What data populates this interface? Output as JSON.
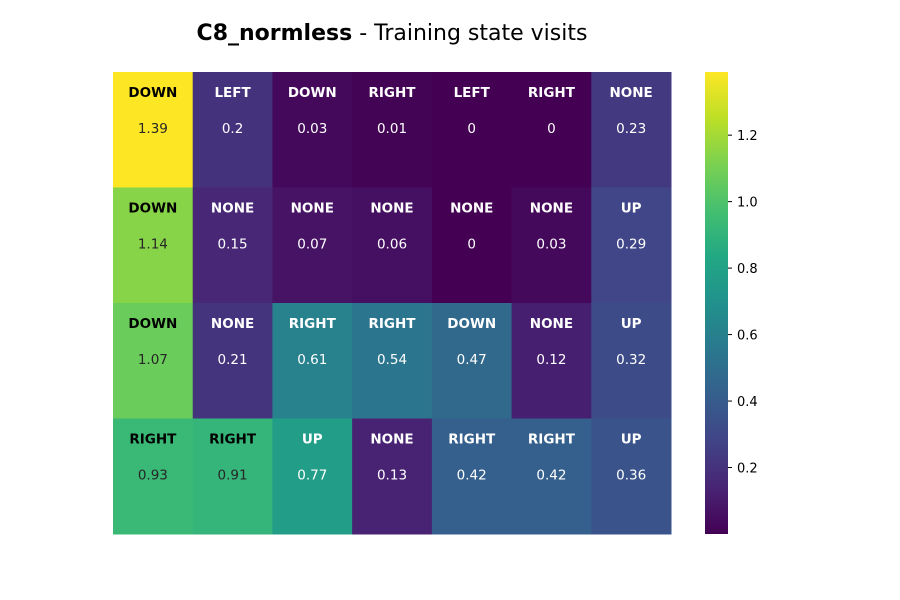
{
  "title": {
    "bold": "C8_normless",
    "rest": " - Training state visits"
  },
  "chart_data": {
    "type": "heatmap",
    "rows": 4,
    "cols": 7,
    "actions": [
      [
        "DOWN",
        "LEFT",
        "DOWN",
        "RIGHT",
        "LEFT",
        "RIGHT",
        "NONE"
      ],
      [
        "DOWN",
        "NONE",
        "NONE",
        "NONE",
        "NONE",
        "NONE",
        "UP"
      ],
      [
        "DOWN",
        "NONE",
        "RIGHT",
        "RIGHT",
        "DOWN",
        "NONE",
        "UP"
      ],
      [
        "RIGHT",
        "RIGHT",
        "UP",
        "NONE",
        "RIGHT",
        "RIGHT",
        "UP"
      ]
    ],
    "values": [
      [
        1.39,
        0.2,
        0.03,
        0.01,
        0,
        0,
        0.23
      ],
      [
        1.14,
        0.15,
        0.07,
        0.06,
        0,
        0.03,
        0.29
      ],
      [
        1.07,
        0.21,
        0.61,
        0.54,
        0.47,
        0.12,
        0.32
      ],
      [
        0.93,
        0.91,
        0.77,
        0.13,
        0.42,
        0.42,
        0.36
      ]
    ],
    "vmin": 0,
    "vmax": 1.39,
    "colormap": "viridis",
    "colorbar_ticks": [
      0.2,
      0.4,
      0.6,
      0.8,
      1.0,
      1.2
    ],
    "colorbar_tick_labels": [
      "0.2",
      "0.4",
      "0.6",
      "0.8",
      "1.0",
      "1.2"
    ]
  }
}
